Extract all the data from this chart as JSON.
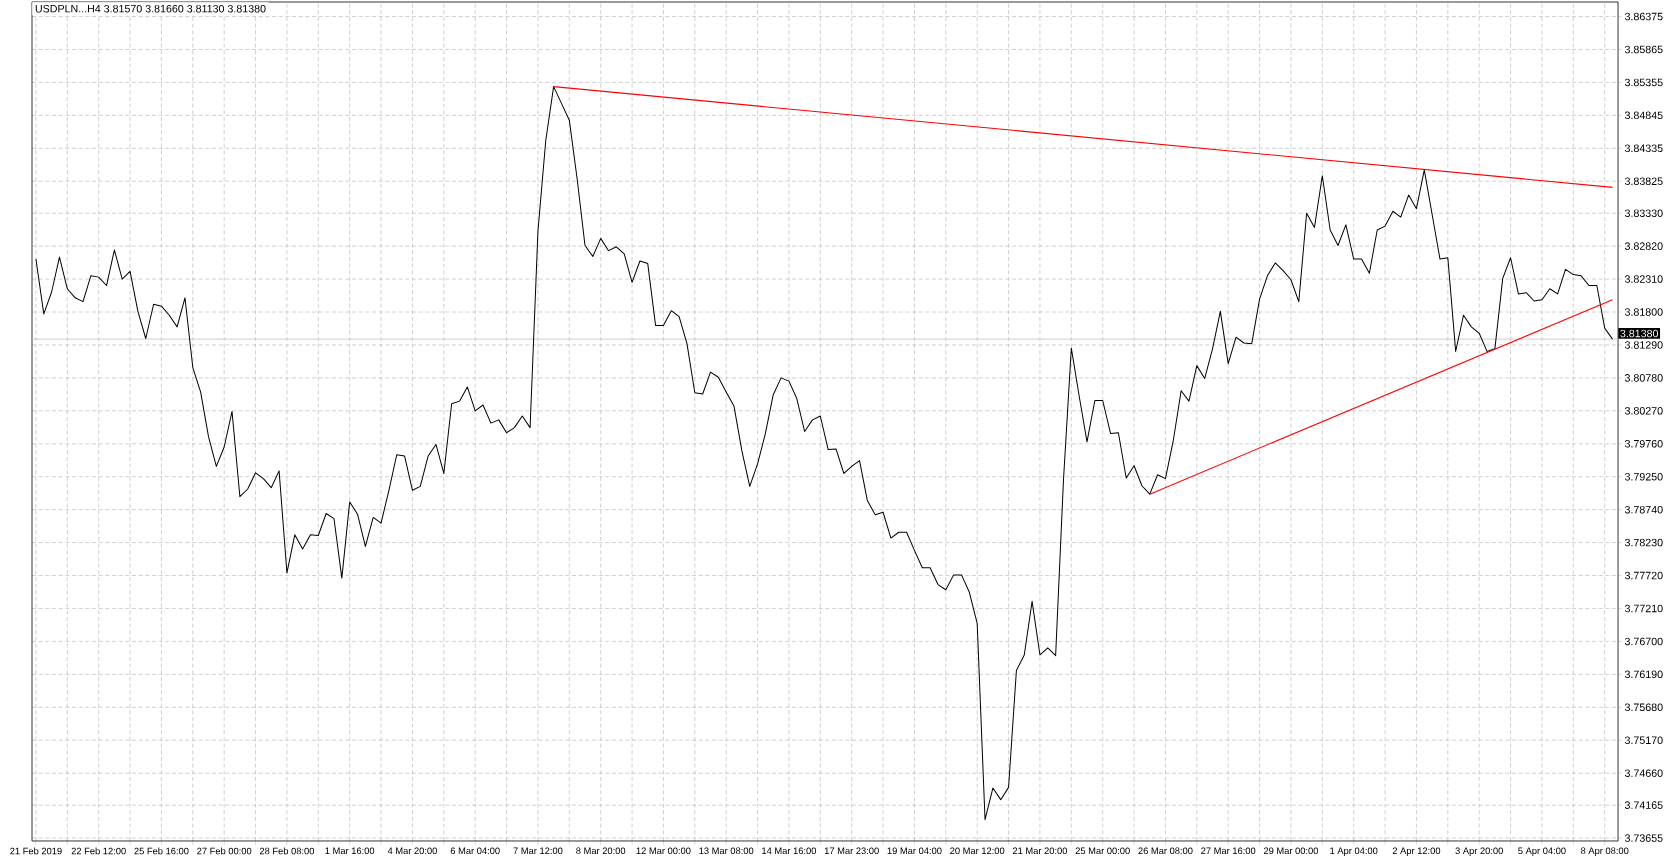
{
  "chart_data": {
    "type": "line",
    "title": "USDPLN...H4  3.81570 3.81660 3.81130 3.81380",
    "categories": [
      "21 Feb 2019",
      null,
      null,
      null,
      null,
      null,
      null,
      null,
      "22 Feb 12:00",
      null,
      null,
      null,
      null,
      null,
      null,
      null,
      "25 Feb 16:00",
      null,
      null,
      null,
      null,
      null,
      null,
      null,
      "27 Feb 00:00",
      null,
      null,
      null,
      null,
      null,
      null,
      null,
      "28 Feb 08:00",
      null,
      null,
      null,
      null,
      null,
      null,
      null,
      "1 Mar 16:00",
      null,
      null,
      null,
      null,
      null,
      null,
      null,
      "4 Mar 20:00",
      null,
      null,
      null,
      null,
      null,
      null,
      null,
      "6 Mar 04:00",
      null,
      null,
      null,
      null,
      null,
      null,
      null,
      "7 Mar 12:00",
      null,
      null,
      null,
      null,
      null,
      null,
      null,
      "8 Mar 20:00",
      null,
      null,
      null,
      null,
      null,
      null,
      null,
      "12 Mar 00:00",
      null,
      null,
      null,
      null,
      null,
      null,
      null,
      "13 Mar 08:00",
      null,
      null,
      null,
      null,
      null,
      null,
      null,
      "14 Mar 16:00",
      null,
      null,
      null,
      null,
      null,
      null,
      null,
      "17 Mar 23:00",
      null,
      null,
      null,
      null,
      null,
      null,
      null,
      "19 Mar 04:00",
      null,
      null,
      null,
      null,
      null,
      null,
      null,
      "20 Mar 12:00",
      null,
      null,
      null,
      null,
      null,
      null,
      null,
      "21 Mar 20:00",
      null,
      null,
      null,
      null,
      null,
      null,
      null,
      "25 Mar 00:00",
      null,
      null,
      null,
      null,
      null,
      null,
      null,
      "26 Mar 08:00",
      null,
      null,
      null,
      null,
      null,
      null,
      null,
      "27 Mar 16:00",
      null,
      null,
      null,
      null,
      null,
      null,
      null,
      "29 Mar 00:00",
      null,
      null,
      null,
      null,
      null,
      null,
      null,
      "1 Apr 04:00",
      null,
      null,
      null,
      null,
      null,
      null,
      null,
      "2 Apr 12:00",
      null,
      null,
      null,
      null,
      null,
      null,
      null,
      "3 Apr 20:00",
      null,
      null,
      null,
      null,
      null,
      null,
      null,
      "5 Apr 04:00",
      null,
      null,
      null,
      null,
      null,
      null,
      null,
      "8 Apr 08:00",
      null
    ],
    "series": [
      {
        "color": "#000000",
        "values": [
          3.8262,
          3.8177,
          3.8211,
          3.8265,
          3.8216,
          3.8202,
          3.8196,
          3.8236,
          3.8234,
          3.8221,
          3.8276,
          3.8231,
          3.8243,
          3.8181,
          3.8139,
          3.8192,
          3.8189,
          3.8175,
          3.8157,
          3.8202,
          3.8094,
          3.8056,
          3.7987,
          3.7941,
          3.7971,
          3.8026,
          3.7894,
          3.7906,
          3.7931,
          3.7922,
          3.7908,
          3.7934,
          3.7776,
          3.7835,
          3.7813,
          3.7835,
          3.7834,
          3.7868,
          3.786,
          3.7768,
          3.7886,
          3.7867,
          3.7817,
          3.7862,
          3.7853,
          3.7904,
          3.7959,
          3.7957,
          3.7904,
          3.791,
          3.7957,
          3.7975,
          3.793,
          3.8038,
          3.8042,
          3.8064,
          3.8027,
          3.8036,
          3.8008,
          3.8013,
          3.7993,
          3.8001,
          3.8019,
          3.8001,
          3.8305,
          3.8446,
          3.8529,
          3.8503,
          3.8477,
          3.8386,
          3.8283,
          3.8266,
          3.8294,
          3.8275,
          3.8281,
          3.827,
          3.8226,
          3.8259,
          3.8255,
          3.8159,
          3.8159,
          3.8182,
          3.8173,
          3.8131,
          3.8055,
          3.8053,
          3.8087,
          3.8079,
          3.8056,
          3.8034,
          3.7965,
          3.791,
          3.7945,
          3.7992,
          3.8052,
          3.8078,
          3.8073,
          3.8046,
          3.7995,
          3.8013,
          3.8019,
          3.7967,
          3.7968,
          3.793,
          3.7941,
          3.795,
          3.7888,
          3.7866,
          3.787,
          3.783,
          3.7839,
          3.7839,
          3.7811,
          3.7784,
          3.7784,
          3.7758,
          3.775,
          3.7773,
          3.7773,
          3.7746,
          3.7698,
          3.7394,
          3.7443,
          3.7425,
          3.7444,
          3.7625,
          3.7649,
          3.7732,
          3.7649,
          3.766,
          3.7648,
          3.792,
          3.8124,
          3.805,
          3.7979,
          3.8043,
          3.8043,
          3.7992,
          3.7993,
          3.7923,
          3.7942,
          3.7911,
          3.7898,
          3.7928,
          3.7922,
          3.7981,
          3.8058,
          3.8042,
          3.8097,
          3.8077,
          3.8123,
          3.8181,
          3.81,
          3.8141,
          3.8132,
          3.8131,
          3.82,
          3.8236,
          3.8256,
          3.8244,
          3.823,
          3.8196,
          3.8333,
          3.8311,
          3.8391,
          3.8307,
          3.8283,
          3.8315,
          3.8262,
          3.8262,
          3.824,
          3.8307,
          3.8313,
          3.8336,
          3.8327,
          3.8361,
          3.834,
          3.84,
          3.8331,
          3.8262,
          3.8264,
          3.8119,
          3.8175,
          3.8157,
          3.8147,
          3.8119,
          3.8123,
          3.8232,
          3.8264,
          3.8208,
          3.821,
          3.8197,
          3.8199,
          3.8216,
          3.8208,
          3.8246,
          3.8238,
          3.8236,
          3.8221,
          3.8221,
          3.8155,
          3.8138
        ]
      },
      {
        "type": "line",
        "color": "#ff0000",
        "values": [
          null,
          null,
          null,
          null,
          null,
          null,
          null,
          null,
          null,
          null,
          null,
          null,
          null,
          null,
          null,
          null,
          null,
          null,
          null,
          null,
          null,
          null,
          null,
          null,
          null,
          null,
          null,
          null,
          null,
          null,
          null,
          null,
          null,
          null,
          null,
          null,
          null,
          null,
          null,
          null,
          null,
          null,
          null,
          null,
          null,
          null,
          null,
          null,
          null,
          null,
          null,
          null,
          null,
          null,
          null,
          null,
          null,
          null,
          null,
          null,
          null,
          null,
          null,
          null,
          null,
          null,
          3.8529,
          null,
          null,
          null,
          null,
          null,
          null,
          null,
          null,
          null,
          null,
          null,
          null,
          null,
          null,
          null,
          null,
          null,
          null,
          null,
          null,
          null,
          null,
          null,
          null,
          null,
          null,
          null,
          null,
          null,
          null,
          null,
          null,
          null,
          null,
          null,
          null,
          null,
          null,
          null,
          null,
          null,
          null,
          null,
          null,
          null,
          null,
          null,
          null,
          null,
          null,
          null,
          null,
          null,
          null,
          null,
          null,
          null,
          null,
          null,
          null,
          null,
          null,
          null,
          null,
          null,
          null,
          null,
          null,
          null,
          null,
          null,
          null,
          null,
          null,
          null,
          null,
          null,
          null,
          null,
          null,
          null,
          null,
          null,
          null,
          null,
          null,
          null,
          null,
          null,
          null,
          null,
          null,
          null,
          null,
          null,
          null,
          null,
          null,
          null,
          null,
          null,
          null,
          null,
          null,
          null,
          null,
          null,
          null,
          null,
          null,
          null,
          null,
          null,
          null,
          null,
          null,
          null,
          null,
          null,
          null,
          null,
          null,
          null,
          null,
          null,
          null,
          null,
          null,
          null,
          null,
          null,
          null,
          null,
          null,
          3.8373
        ]
      },
      {
        "type": "line",
        "color": "#ff0000",
        "values": [
          null,
          null,
          null,
          null,
          null,
          null,
          null,
          null,
          null,
          null,
          null,
          null,
          null,
          null,
          null,
          null,
          null,
          null,
          null,
          null,
          null,
          null,
          null,
          null,
          null,
          null,
          null,
          null,
          null,
          null,
          null,
          null,
          null,
          null,
          null,
          null,
          null,
          null,
          null,
          null,
          null,
          null,
          null,
          null,
          null,
          null,
          null,
          null,
          null,
          null,
          null,
          null,
          null,
          null,
          null,
          null,
          null,
          null,
          null,
          null,
          null,
          null,
          null,
          null,
          null,
          null,
          null,
          null,
          null,
          null,
          null,
          null,
          null,
          null,
          null,
          null,
          null,
          null,
          null,
          null,
          null,
          null,
          null,
          null,
          null,
          null,
          null,
          null,
          null,
          null,
          null,
          null,
          null,
          null,
          null,
          null,
          null,
          null,
          null,
          null,
          null,
          null,
          null,
          null,
          null,
          null,
          null,
          null,
          null,
          null,
          null,
          null,
          null,
          null,
          null,
          null,
          null,
          null,
          null,
          null,
          null,
          null,
          null,
          null,
          null,
          null,
          null,
          null,
          null,
          null,
          null,
          null,
          null,
          null,
          null,
          null,
          null,
          null,
          null,
          null,
          null,
          null,
          3.7898,
          null,
          null,
          null,
          null,
          null,
          null,
          null,
          null,
          null,
          null,
          null,
          null,
          null,
          null,
          null,
          null,
          null,
          null,
          null,
          null,
          null,
          null,
          null,
          null,
          null,
          null,
          null,
          null,
          null,
          null,
          null,
          null,
          null,
          null,
          null,
          null,
          null,
          null,
          null,
          null,
          null,
          null,
          null,
          null,
          null,
          null,
          null,
          null,
          null,
          null,
          null,
          null,
          null,
          null,
          null,
          null,
          null,
          null,
          3.8199
        ]
      }
    ],
    "ylim": [
      3.7361,
      3.866
    ],
    "yticks": [
      3.73655,
      3.74165,
      {
        "value": 3.7466,
        "label": "3.74660"
      },
      {
        "value": 3.7517,
        "label": "3.75170"
      },
      {
        "value": 3.7568,
        "label": "3.75680"
      },
      {
        "value": 3.7619,
        "label": "3.76190"
      },
      {
        "value": 3.767,
        "label": "3.76700"
      },
      {
        "value": 3.7721,
        "label": "3.77210"
      },
      {
        "value": 3.7772,
        "label": "3.77720"
      },
      {
        "value": 3.7823,
        "label": "3.78230"
      },
      {
        "value": 3.7874,
        "label": "3.78740"
      },
      {
        "value": 3.7925,
        "label": "3.79250"
      },
      {
        "value": 3.7976,
        "label": "3.79760"
      },
      {
        "value": 3.8027,
        "label": "3.80270"
      },
      {
        "value": 3.8078,
        "label": "3.80780"
      },
      {
        "value": 3.8129,
        "label": "3.81290"
      },
      {
        "value": 3.818,
        "label": "3.81800"
      },
      {
        "value": 3.8231,
        "label": "3.82310"
      },
      {
        "value": 3.8282,
        "label": "3.82820"
      },
      {
        "value": 3.8333,
        "label": "3.83330"
      },
      3.83825,
      3.84335,
      3.84845,
      3.85355,
      3.85865,
      3.86375
    ],
    "ref_lines": [
      {
        "axis": "y",
        "value": 3.8138,
        "label": "3.81380",
        "color": "#c0c0c0"
      }
    ],
    "grid": true
  }
}
